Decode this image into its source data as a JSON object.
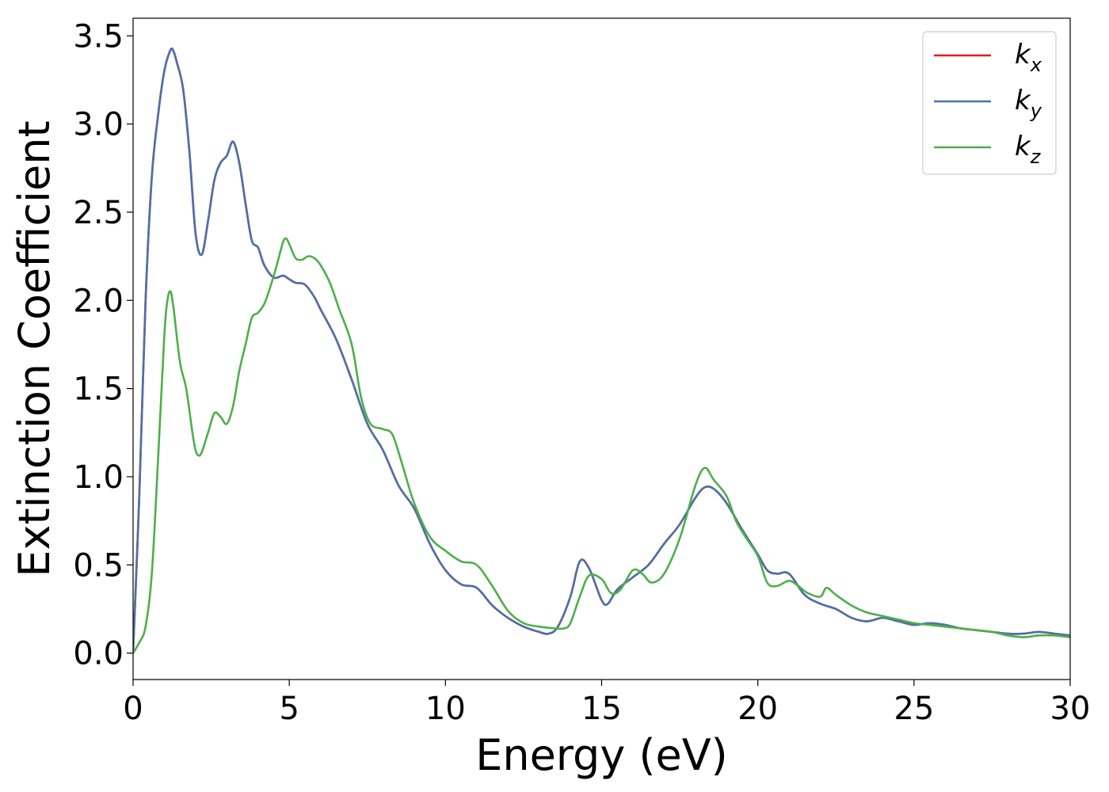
{
  "chart_data": {
    "type": "line",
    "title": "",
    "xlabel": "Energy (eV)",
    "ylabel": "Extinction Coefficient",
    "xlim": [
      0,
      30
    ],
    "ylim": [
      -0.15,
      3.6
    ],
    "xticks": [
      0,
      5,
      10,
      15,
      20,
      25,
      30
    ],
    "xtick_labels": [
      "0",
      "5",
      "10",
      "15",
      "20",
      "25",
      "30"
    ],
    "yticks": [
      0.0,
      0.5,
      1.0,
      1.5,
      2.0,
      2.5,
      3.0,
      3.5
    ],
    "ytick_labels": [
      "0.0",
      "0.5",
      "1.0",
      "1.5",
      "2.0",
      "2.5",
      "3.0",
      "3.5"
    ],
    "grid": false,
    "legend_position": "top-right",
    "series": [
      {
        "name": "k",
        "subscript": "x",
        "color": "#e41a1c",
        "x": [
          0,
          0.2,
          0.4,
          0.6,
          0.8,
          1.0,
          1.2,
          1.3,
          1.4,
          1.6,
          1.8,
          2.0,
          2.2,
          2.4,
          2.6,
          2.8,
          3.0,
          3.2,
          3.4,
          3.6,
          3.8,
          4.0,
          4.2,
          4.5,
          4.8,
          5.0,
          5.2,
          5.5,
          5.8,
          6.0,
          6.5,
          7.0,
          7.5,
          8.0,
          8.5,
          9.0,
          9.5,
          10.0,
          10.5,
          11.0,
          11.5,
          12.0,
          12.5,
          13.0,
          13.3,
          13.6,
          14.0,
          14.3,
          14.6,
          15.0,
          15.2,
          15.5,
          16.0,
          16.5,
          17.0,
          17.5,
          18.0,
          18.3,
          18.6,
          19.0,
          19.5,
          20.0,
          20.3,
          20.6,
          21.0,
          21.5,
          22.0,
          22.5,
          23.0,
          23.5,
          24.0,
          24.5,
          25.0,
          25.5,
          26.0,
          26.5,
          27.0,
          27.5,
          28.0,
          28.5,
          29.0,
          29.5,
          30.0
        ],
        "values": [
          0.0,
          0.9,
          2.0,
          2.7,
          3.05,
          3.3,
          3.42,
          3.41,
          3.35,
          3.2,
          2.85,
          2.38,
          2.26,
          2.45,
          2.68,
          2.78,
          2.82,
          2.9,
          2.78,
          2.55,
          2.34,
          2.3,
          2.2,
          2.13,
          2.14,
          2.12,
          2.1,
          2.09,
          2.02,
          1.95,
          1.78,
          1.55,
          1.3,
          1.15,
          0.95,
          0.82,
          0.62,
          0.47,
          0.39,
          0.37,
          0.27,
          0.2,
          0.15,
          0.12,
          0.11,
          0.15,
          0.32,
          0.52,
          0.48,
          0.3,
          0.28,
          0.36,
          0.43,
          0.5,
          0.62,
          0.73,
          0.88,
          0.94,
          0.93,
          0.85,
          0.7,
          0.56,
          0.47,
          0.45,
          0.45,
          0.33,
          0.28,
          0.25,
          0.2,
          0.18,
          0.2,
          0.18,
          0.16,
          0.17,
          0.16,
          0.14,
          0.13,
          0.12,
          0.11,
          0.11,
          0.12,
          0.11,
          0.1
        ]
      },
      {
        "name": "k",
        "subscript": "y",
        "color": "#4a72a8",
        "x": [
          0,
          0.2,
          0.4,
          0.6,
          0.8,
          1.0,
          1.2,
          1.3,
          1.4,
          1.6,
          1.8,
          2.0,
          2.2,
          2.4,
          2.6,
          2.8,
          3.0,
          3.2,
          3.4,
          3.6,
          3.8,
          4.0,
          4.2,
          4.5,
          4.8,
          5.0,
          5.2,
          5.5,
          5.8,
          6.0,
          6.5,
          7.0,
          7.5,
          8.0,
          8.5,
          9.0,
          9.5,
          10.0,
          10.5,
          11.0,
          11.5,
          12.0,
          12.5,
          13.0,
          13.3,
          13.6,
          14.0,
          14.3,
          14.6,
          15.0,
          15.2,
          15.5,
          16.0,
          16.5,
          17.0,
          17.5,
          18.0,
          18.3,
          18.6,
          19.0,
          19.5,
          20.0,
          20.3,
          20.6,
          21.0,
          21.5,
          22.0,
          22.5,
          23.0,
          23.5,
          24.0,
          24.5,
          25.0,
          25.5,
          26.0,
          26.5,
          27.0,
          27.5,
          28.0,
          28.5,
          29.0,
          29.5,
          30.0
        ],
        "values": [
          0.0,
          0.9,
          2.0,
          2.7,
          3.05,
          3.3,
          3.42,
          3.41,
          3.35,
          3.2,
          2.85,
          2.38,
          2.26,
          2.45,
          2.68,
          2.78,
          2.82,
          2.9,
          2.78,
          2.55,
          2.34,
          2.3,
          2.2,
          2.13,
          2.14,
          2.12,
          2.1,
          2.09,
          2.02,
          1.95,
          1.78,
          1.55,
          1.3,
          1.15,
          0.95,
          0.82,
          0.62,
          0.47,
          0.39,
          0.37,
          0.27,
          0.2,
          0.15,
          0.12,
          0.11,
          0.15,
          0.32,
          0.52,
          0.48,
          0.3,
          0.28,
          0.36,
          0.43,
          0.5,
          0.62,
          0.73,
          0.88,
          0.94,
          0.93,
          0.85,
          0.7,
          0.56,
          0.47,
          0.45,
          0.45,
          0.33,
          0.28,
          0.25,
          0.2,
          0.18,
          0.2,
          0.18,
          0.16,
          0.17,
          0.16,
          0.14,
          0.13,
          0.12,
          0.11,
          0.11,
          0.12,
          0.11,
          0.1
        ]
      },
      {
        "name": "k",
        "subscript": "z",
        "color": "#4daf4a",
        "x": [
          0,
          0.2,
          0.4,
          0.6,
          0.8,
          1.0,
          1.1,
          1.2,
          1.3,
          1.5,
          1.7,
          1.9,
          2.0,
          2.1,
          2.2,
          2.4,
          2.6,
          2.8,
          3.0,
          3.2,
          3.4,
          3.6,
          3.8,
          4.0,
          4.2,
          4.4,
          4.6,
          4.8,
          4.9,
          5.0,
          5.2,
          5.4,
          5.6,
          5.8,
          6.0,
          6.3,
          6.6,
          7.0,
          7.3,
          7.6,
          8.0,
          8.3,
          8.6,
          9.0,
          9.5,
          10.0,
          10.5,
          11.0,
          11.5,
          12.0,
          12.5,
          13.0,
          13.5,
          13.8,
          14.0,
          14.3,
          14.6,
          15.0,
          15.3,
          15.6,
          16.0,
          16.3,
          16.6,
          17.0,
          17.5,
          18.0,
          18.3,
          18.6,
          19.0,
          19.3,
          19.6,
          20.0,
          20.3,
          20.6,
          21.0,
          21.3,
          21.6,
          22.0,
          22.2,
          22.5,
          23.0,
          23.5,
          24.0,
          24.5,
          25.0,
          25.5,
          26.0,
          26.5,
          27.0,
          27.5,
          28.0,
          28.5,
          29.0,
          29.5,
          30.0
        ],
        "values": [
          0.0,
          0.06,
          0.15,
          0.45,
          1.1,
          1.8,
          2.0,
          2.05,
          1.95,
          1.65,
          1.5,
          1.25,
          1.15,
          1.12,
          1.14,
          1.25,
          1.36,
          1.34,
          1.3,
          1.4,
          1.6,
          1.75,
          1.9,
          1.93,
          1.98,
          2.08,
          2.2,
          2.33,
          2.35,
          2.32,
          2.24,
          2.23,
          2.25,
          2.24,
          2.2,
          2.1,
          1.95,
          1.75,
          1.45,
          1.3,
          1.27,
          1.24,
          1.08,
          0.85,
          0.66,
          0.58,
          0.52,
          0.5,
          0.38,
          0.24,
          0.17,
          0.15,
          0.14,
          0.14,
          0.17,
          0.32,
          0.44,
          0.42,
          0.34,
          0.36,
          0.47,
          0.45,
          0.4,
          0.45,
          0.65,
          0.95,
          1.05,
          0.98,
          0.89,
          0.75,
          0.66,
          0.55,
          0.4,
          0.38,
          0.41,
          0.38,
          0.34,
          0.32,
          0.37,
          0.33,
          0.27,
          0.23,
          0.21,
          0.19,
          0.17,
          0.16,
          0.15,
          0.14,
          0.13,
          0.12,
          0.1,
          0.09,
          0.1,
          0.1,
          0.09
        ]
      }
    ]
  }
}
